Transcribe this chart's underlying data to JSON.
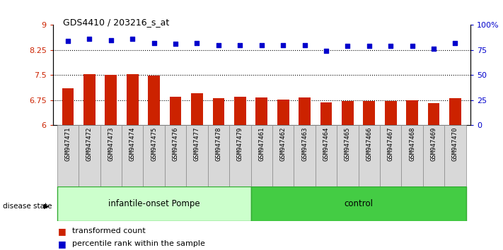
{
  "title": "GDS4410 / 203216_s_at",
  "samples": [
    "GSM947471",
    "GSM947472",
    "GSM947473",
    "GSM947474",
    "GSM947475",
    "GSM947476",
    "GSM947477",
    "GSM947478",
    "GSM947479",
    "GSM947461",
    "GSM947462",
    "GSM947463",
    "GSM947464",
    "GSM947465",
    "GSM947466",
    "GSM947467",
    "GSM947468",
    "GSM947469",
    "GSM947470"
  ],
  "bar_values": [
    7.1,
    7.52,
    7.5,
    7.52,
    7.48,
    6.85,
    6.95,
    6.8,
    6.85,
    6.82,
    6.77,
    6.82,
    6.68,
    6.73,
    6.71,
    6.73,
    6.75,
    6.65,
    6.8
  ],
  "dot_values": [
    84,
    86,
    85,
    86,
    82,
    81,
    82,
    80,
    80,
    80,
    80,
    80,
    74,
    79,
    79,
    79,
    79,
    76,
    82
  ],
  "ylim_left": [
    6,
    9
  ],
  "ylim_right": [
    0,
    100
  ],
  "yticks_left": [
    6,
    6.75,
    7.5,
    8.25,
    9
  ],
  "ytick_labels_left": [
    "6",
    "6.75",
    "7.5",
    "8.25",
    "9"
  ],
  "yticks_right": [
    0,
    25,
    50,
    75,
    100
  ],
  "ytick_labels_right": [
    "0",
    "25",
    "50",
    "75",
    "100%"
  ],
  "hlines": [
    6.75,
    7.5,
    8.25
  ],
  "bar_color": "#cc2200",
  "dot_color": "#0000cc",
  "group1_label": "infantile-onset Pompe",
  "group2_label": "control",
  "group1_count": 9,
  "group2_count": 10,
  "disease_state_label": "disease state",
  "legend_bar_label": "transformed count",
  "legend_dot_label": "percentile rank within the sample",
  "group1_color": "#ccffcc",
  "group2_color": "#44cc44",
  "cell_bg_color": "#d8d8d8",
  "cell_edge_color": "#888888",
  "left_axis_color": "#cc2200",
  "right_axis_color": "#0000cc",
  "bg_color": "#ffffff"
}
